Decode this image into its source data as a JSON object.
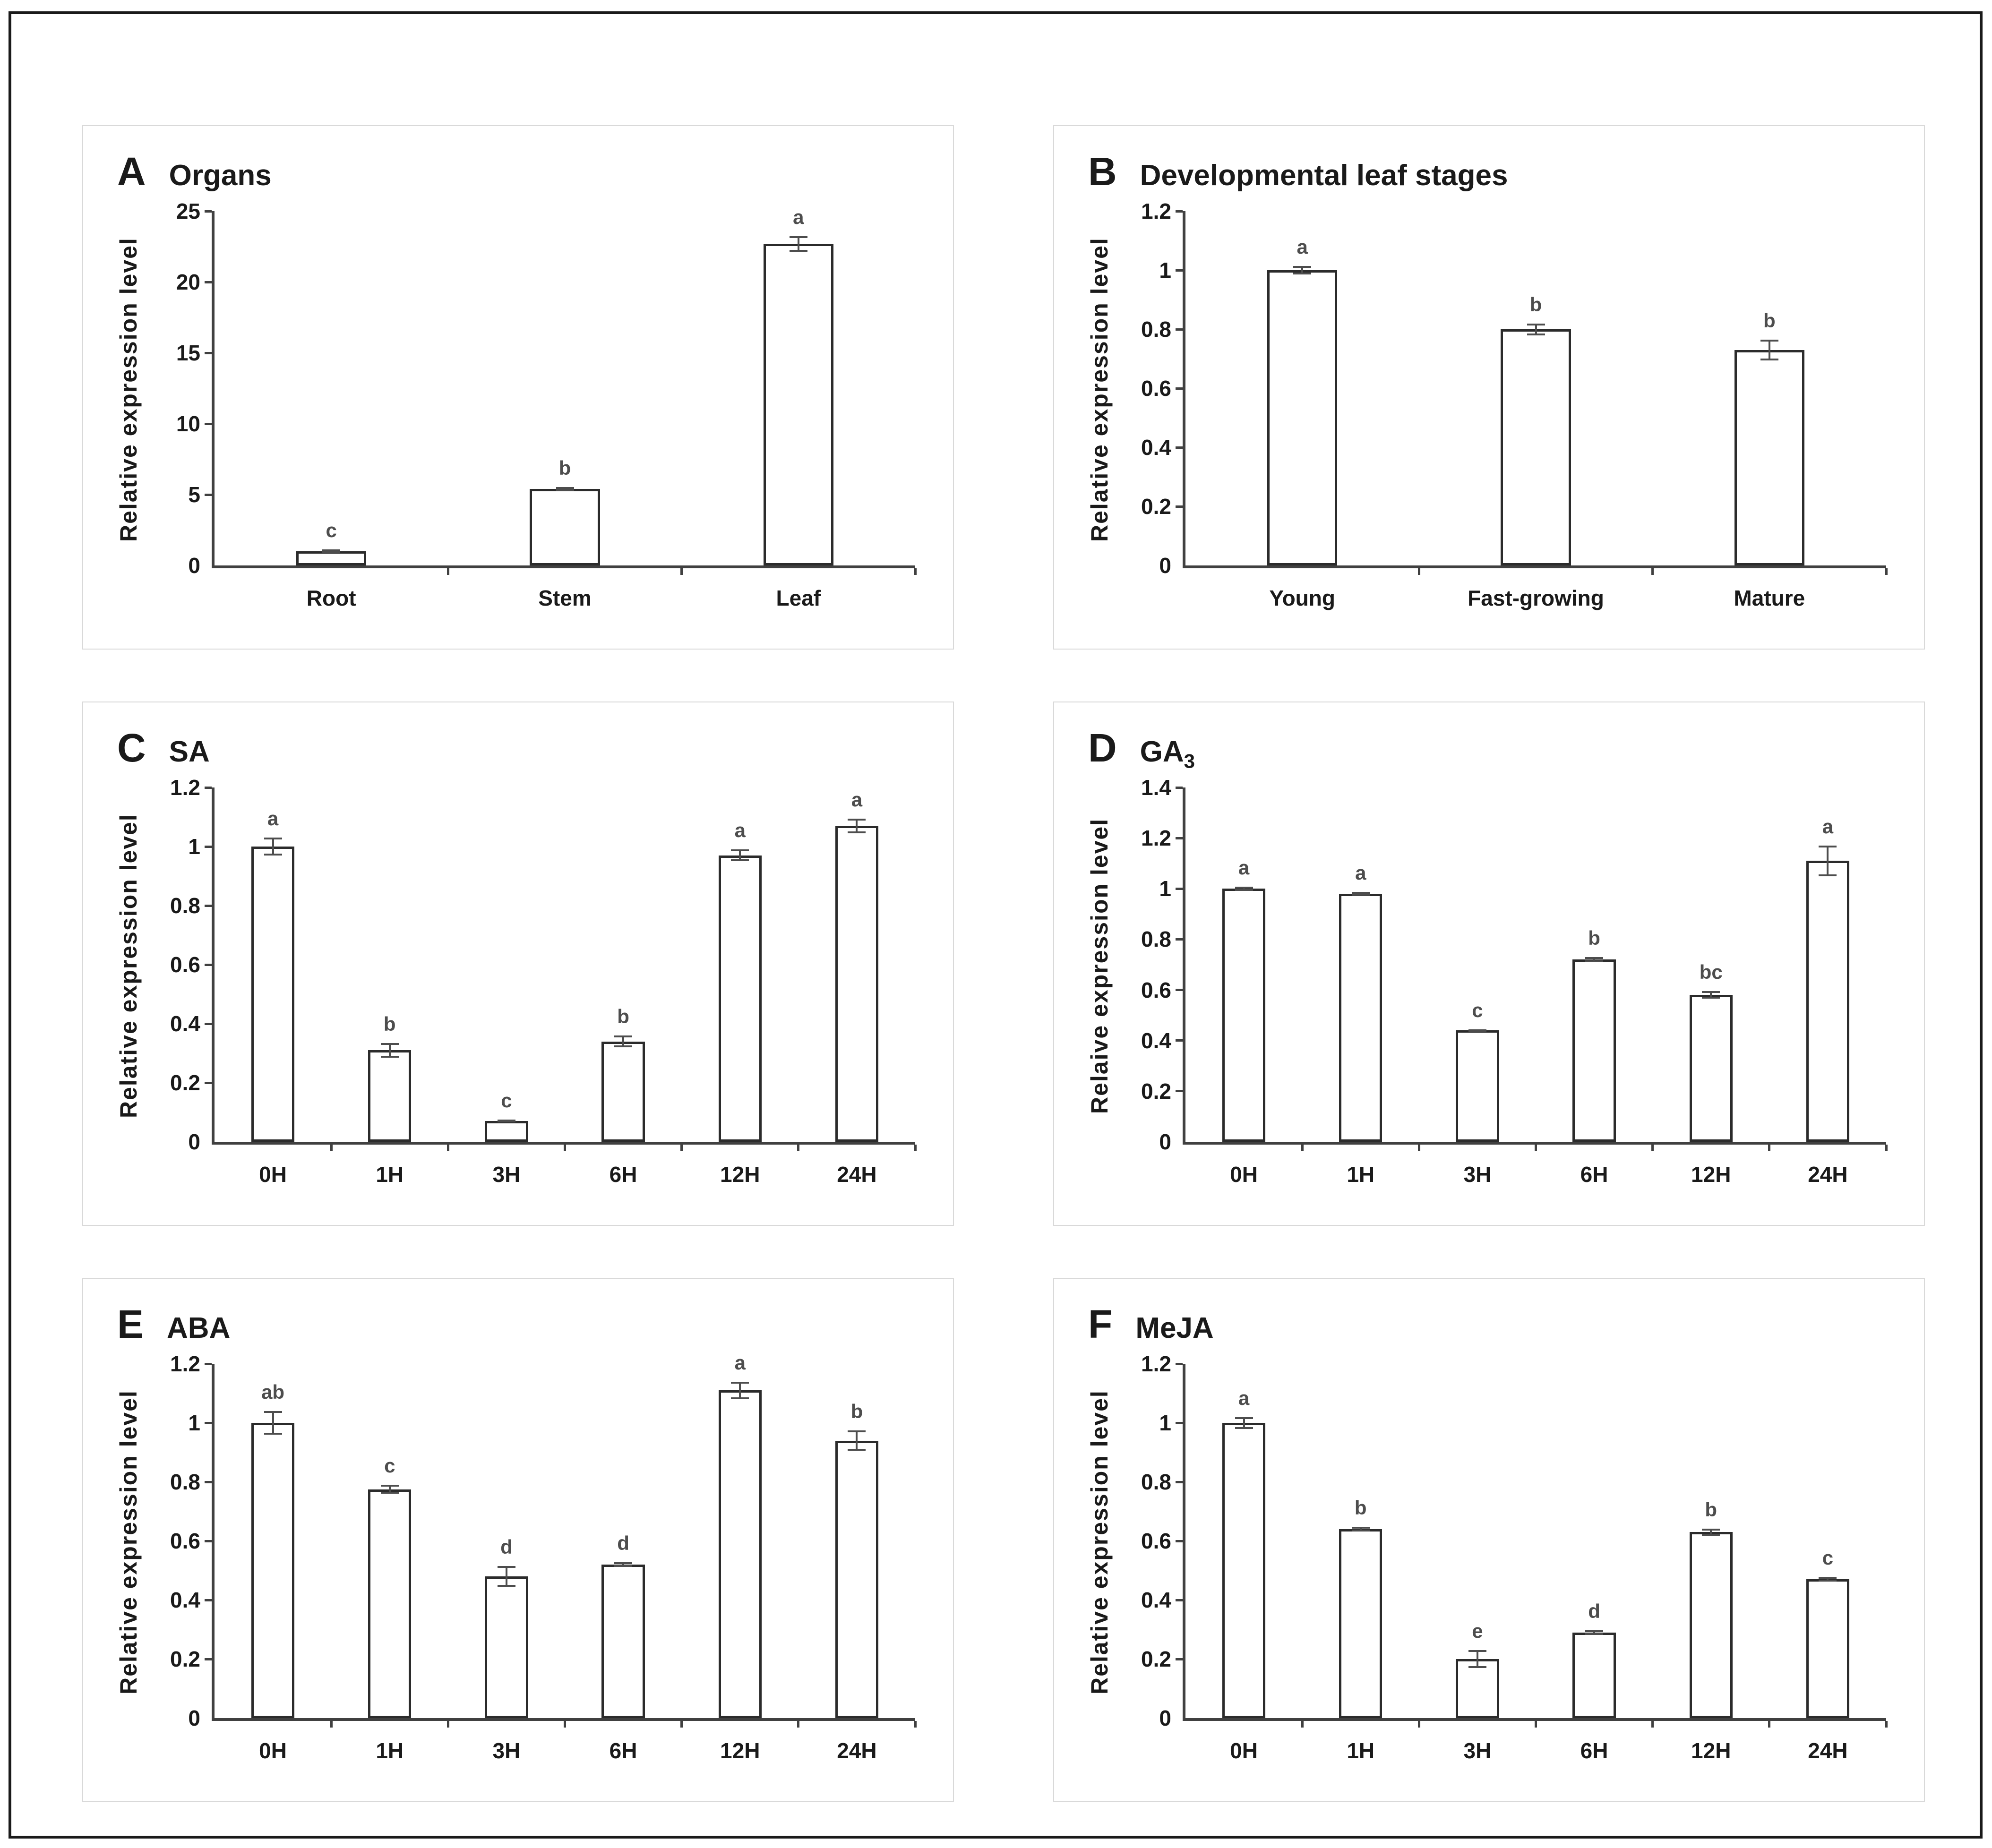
{
  "figure": {
    "colors": {
      "text": "#1a1a1a",
      "frame": "#1a1a1a",
      "panel_border": "#d9d9d9",
      "axis": "#404040",
      "bar_fill": "#ffffff",
      "bar_border": "#2b2b2b",
      "error_bar": "#4d4d4d"
    }
  },
  "chart_data": [
    {
      "type": "bar",
      "letter": "A",
      "title": "Organs",
      "ylabel": "Relative expression level",
      "ylim": [
        0,
        25
      ],
      "yticks": [
        0,
        5,
        10,
        15,
        20,
        25
      ],
      "ytick_labels": [
        "0",
        "5",
        "10",
        "15",
        "20",
        "25"
      ],
      "categories": [
        "Root",
        "Stem",
        "Leaf"
      ],
      "values": [
        1.0,
        5.4,
        22.7
      ],
      "errors": [
        0.12,
        0.12,
        0.55
      ],
      "sig_letters": [
        "c",
        "b",
        "a"
      ],
      "legend": null,
      "grid": false
    },
    {
      "type": "bar",
      "letter": "B",
      "title": "Developmental leaf stages",
      "ylabel": "Relative expression level",
      "ylim": [
        0,
        1.2
      ],
      "yticks": [
        0,
        0.2,
        0.4,
        0.6,
        0.8,
        1,
        1.2
      ],
      "ytick_labels": [
        "0",
        "0.2",
        "0.4",
        "0.6",
        "0.8",
        "1",
        "1.2"
      ],
      "categories": [
        "Young",
        "Fast-growing",
        "Mature"
      ],
      "values": [
        1.0,
        0.8,
        0.73
      ],
      "errors": [
        0.015,
        0.02,
        0.035
      ],
      "sig_letters": [
        "a",
        "b",
        "b"
      ],
      "legend": null,
      "grid": false
    },
    {
      "type": "bar",
      "letter": "C",
      "title": "SA",
      "ylabel": "Relative expression level",
      "ylim": [
        0,
        1.2
      ],
      "yticks": [
        0,
        0.2,
        0.4,
        0.6,
        0.8,
        1,
        1.2
      ],
      "ytick_labels": [
        "0",
        "0.2",
        "0.4",
        "0.6",
        "0.8",
        "1",
        "1.2"
      ],
      "categories": [
        "0H",
        "1H",
        "3H",
        "6H",
        "12H",
        "24H"
      ],
      "values": [
        1.0,
        0.31,
        0.07,
        0.34,
        0.97,
        1.07
      ],
      "errors": [
        0.03,
        0.025,
        0.005,
        0.02,
        0.02,
        0.025
      ],
      "sig_letters": [
        "a",
        "b",
        "c",
        "b",
        "a",
        "a"
      ],
      "legend": null,
      "grid": false
    },
    {
      "type": "bar",
      "letter": "D",
      "title": "GA",
      "title_sub": "3",
      "ylabel": "Relaive expression level",
      "ylim": [
        0,
        1.4
      ],
      "yticks": [
        0,
        0.2,
        0.4,
        0.6,
        0.8,
        1,
        1.2,
        1.4
      ],
      "ytick_labels": [
        "0",
        "0.2",
        "0.4",
        "0.6",
        "0.8",
        "1",
        "1.2",
        "1.4"
      ],
      "categories": [
        "0H",
        "1H",
        "3H",
        "6H",
        "12H",
        "24H"
      ],
      "values": [
        1.0,
        0.98,
        0.44,
        0.72,
        0.58,
        1.11
      ],
      "errors": [
        0.008,
        0.008,
        0.005,
        0.01,
        0.015,
        0.06
      ],
      "sig_letters": [
        "a",
        "a",
        "c",
        "b",
        "bc",
        "a"
      ],
      "legend": null,
      "grid": false
    },
    {
      "type": "bar",
      "letter": "E",
      "title": "ABA",
      "ylabel": "Relative expression level",
      "ylim": [
        0,
        1.2
      ],
      "yticks": [
        0,
        0.2,
        0.4,
        0.6,
        0.8,
        1,
        1.2
      ],
      "ytick_labels": [
        "0",
        "0.2",
        "0.4",
        "0.6",
        "0.8",
        "1",
        "1.2"
      ],
      "categories": [
        "0H",
        "1H",
        "3H",
        "6H",
        "12H",
        "24H"
      ],
      "values": [
        1.0,
        0.775,
        0.48,
        0.52,
        1.11,
        0.94
      ],
      "errors": [
        0.04,
        0.015,
        0.035,
        0.008,
        0.03,
        0.035
      ],
      "sig_letters": [
        "ab",
        "c",
        "d",
        "d",
        "a",
        "b"
      ],
      "legend": null,
      "grid": false
    },
    {
      "type": "bar",
      "letter": "F",
      "title": "MeJA",
      "ylabel": "Relative expression level",
      "ylim": [
        0,
        1.2
      ],
      "yticks": [
        0,
        0.2,
        0.4,
        0.6,
        0.8,
        1,
        1.2
      ],
      "ytick_labels": [
        "0",
        "0.2",
        "0.4",
        "0.6",
        "0.8",
        "1",
        "1.2"
      ],
      "categories": [
        "0H",
        "1H",
        "3H",
        "6H",
        "12H",
        "24H"
      ],
      "values": [
        1.0,
        0.64,
        0.2,
        0.29,
        0.63,
        0.47
      ],
      "errors": [
        0.02,
        0.008,
        0.03,
        0.008,
        0.012,
        0.008
      ],
      "sig_letters": [
        "a",
        "b",
        "e",
        "d",
        "b",
        "c"
      ],
      "legend": null,
      "grid": false
    }
  ]
}
